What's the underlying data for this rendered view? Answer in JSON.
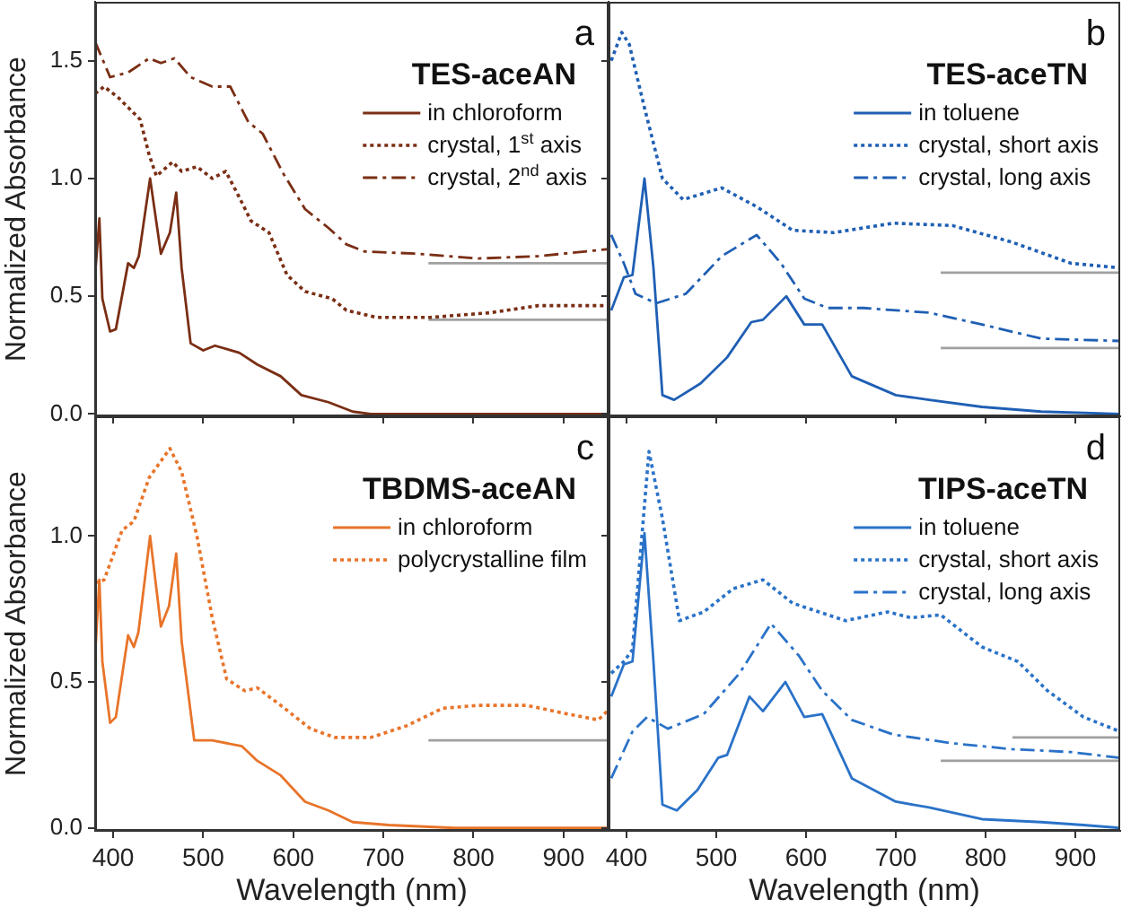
{
  "chart_data": [
    {
      "type": "line",
      "title": "TES-aceAN",
      "annotations": [
        "a"
      ],
      "ylabel": "Normalized Absorbance",
      "xlim": [
        380,
        950
      ],
      "xticks": [
        400,
        500,
        600,
        700,
        800,
        900
      ],
      "ylim": [
        -0.01,
        1.75
      ],
      "yticks": [
        {
          "value": 0,
          "label": "0.0"
        },
        {
          "value": 0.5,
          "label": "0.5"
        },
        {
          "value": 1,
          "label": "1.0"
        },
        {
          "value": 1.5,
          "label": "1.5"
        }
      ],
      "tick_labels": "y",
      "grid": false,
      "legend": "top right",
      "series": [
        {
          "name": "in chloroform",
          "color": "#7a2e14",
          "line_style": "solid",
          "x": [
            380,
            384.7,
            388,
            396.6,
            403,
            416.6,
            423,
            428.5,
            441,
            453,
            463,
            470,
            476,
            486,
            500,
            513,
            540,
            560,
            586,
            609,
            639,
            666,
            686,
            950
          ],
          "values": [
            0.59,
            0.83,
            0.49,
            0.35,
            0.36,
            0.64,
            0.62,
            0.67,
            1.0,
            0.68,
            0.77,
            0.94,
            0.62,
            0.3,
            0.27,
            0.29,
            0.26,
            0.21,
            0.16,
            0.08,
            0.05,
            0.01,
            0,
            0
          ]
        },
        {
          "name": "crystal, 1$^{st}$ axis",
          "color": "#7a2e14",
          "line_style": "dotted",
          "x": [
            380,
            390,
            406.6,
            430,
            440,
            448,
            466,
            476,
            493,
            510,
            525,
            540,
            553,
            573,
            593,
            613,
            643,
            659,
            692.5,
            752,
            819,
            872,
            950
          ],
          "values": [
            1.36,
            1.39,
            1.34,
            1.25,
            1.1,
            1.01,
            1.07,
            1.03,
            1.05,
            1.0,
            1.03,
            0.92,
            0.82,
            0.77,
            0.59,
            0.52,
            0.49,
            0.44,
            0.41,
            0.41,
            0.43,
            0.46,
            0.46
          ]
        },
        {
          "name": "crystal, 2$^{nd}$ axis",
          "color": "#7a2e14",
          "line_style": "dashdot",
          "x": [
            380,
            396.6,
            416.6,
            440,
            453,
            468,
            486,
            510,
            530,
            550,
            566,
            589,
            613,
            639,
            659,
            679,
            739,
            805,
            872,
            950
          ],
          "values": [
            1.58,
            1.43,
            1.45,
            1.51,
            1.49,
            1.51,
            1.43,
            1.39,
            1.39,
            1.24,
            1.19,
            1.02,
            0.87,
            0.79,
            0.72,
            0.69,
            0.68,
            0.66,
            0.67,
            0.7
          ]
        },
        {
          "type": "line",
          "color": "#a0a0a0",
          "line_style": "solid",
          "x": [
            750,
            950
          ],
          "values": [
            0.64,
            0.64
          ]
        },
        {
          "type": "line",
          "color": "#a0a0a0",
          "line_style": "solid",
          "x": [
            750,
            950
          ],
          "values": [
            0.4,
            0.4
          ]
        }
      ]
    },
    {
      "type": "line",
      "title": "TES-aceTN",
      "annotations": [
        "b"
      ],
      "xlim": [
        380,
        950
      ],
      "xticks": [
        400,
        500,
        600,
        700,
        800,
        900
      ],
      "ylim": [
        -0.01,
        1.75
      ],
      "yticks": [
        0,
        0.5,
        1,
        1.5
      ],
      "tick_labels": false,
      "grid": false,
      "legend": "top right",
      "series": [
        {
          "name": "in toluene",
          "color": "#1f5fb4",
          "line_style": "solid",
          "x": [
            383,
            397,
            406.6,
            420,
            430,
            440,
            453,
            482.6,
            512,
            539,
            552,
            578,
            598,
            618,
            651,
            700,
            737,
            796,
            862,
            950
          ],
          "values": [
            0.44,
            0.58,
            0.59,
            1.0,
            0.62,
            0.08,
            0.06,
            0.13,
            0.24,
            0.39,
            0.4,
            0.5,
            0.38,
            0.38,
            0.16,
            0.08,
            0.06,
            0.03,
            0.01,
            0
          ]
        },
        {
          "name": "crystal, short axis",
          "color": "#1f5fb4",
          "line_style": "dotted",
          "x": [
            383,
            394.7,
            403,
            420,
            440,
            463,
            506,
            545,
            585,
            631,
            697,
            763,
            829,
            895,
            950
          ],
          "values": [
            1.5,
            1.62,
            1.57,
            1.3,
            1.0,
            0.91,
            0.96,
            0.88,
            0.78,
            0.77,
            0.81,
            0.8,
            0.73,
            0.64,
            0.62
          ]
        },
        {
          "name": "crystal, long axis",
          "color": "#1f5fb4",
          "line_style": "dashdot",
          "x": [
            383,
            397,
            410,
            433,
            466,
            506,
            545,
            572,
            598,
            624,
            664,
            737,
            796,
            862,
            950
          ],
          "values": [
            0.76,
            0.64,
            0.51,
            0.47,
            0.51,
            0.67,
            0.76,
            0.64,
            0.49,
            0.45,
            0.45,
            0.43,
            0.38,
            0.32,
            0.31
          ]
        },
        {
          "type": "line",
          "color": "#a0a0a0",
          "line_style": "solid",
          "x": [
            750,
            950
          ],
          "values": [
            0.6,
            0.6
          ]
        },
        {
          "type": "line",
          "color": "#a0a0a0",
          "line_style": "solid",
          "x": [
            750,
            950
          ],
          "values": [
            0.28,
            0.28
          ]
        }
      ]
    },
    {
      "type": "line",
      "title": "TBDMS-aceAN",
      "annotations": [
        "c"
      ],
      "xlabel": "Wavelength (nm)",
      "ylabel": "Normalized Absorbance",
      "xlim": [
        380,
        950
      ],
      "xticks": [
        400,
        500,
        600,
        700,
        800,
        900
      ],
      "ylim": [
        -0.01,
        1.41
      ],
      "yticks": [
        {
          "value": 0,
          "label": "0.0"
        },
        {
          "value": 0.5,
          "label": "0.5"
        },
        {
          "value": 1,
          "label": "1.0"
        }
      ],
      "grid": false,
      "legend": "top right",
      "series": [
        {
          "name": "in chloroform",
          "color": "#e8742a",
          "line_style": "solid",
          "x": [
            380,
            384.7,
            388,
            396.6,
            403,
            416.6,
            423,
            428,
            441,
            453,
            462,
            470,
            476,
            490,
            510,
            543,
            560,
            586,
            613,
            639,
            666,
            706,
            779,
            950
          ],
          "values": [
            0.59,
            0.85,
            0.57,
            0.36,
            0.38,
            0.66,
            0.62,
            0.67,
            1.0,
            0.69,
            0.76,
            0.94,
            0.64,
            0.3,
            0.3,
            0.28,
            0.23,
            0.18,
            0.09,
            0.06,
            0.02,
            0.01,
            0,
            0
          ]
        },
        {
          "name": "polycrystalline film",
          "color": "#e8742a",
          "line_style": "dotted",
          "x": [
            380,
            390,
            410,
            423,
            440,
            463,
            476,
            493,
            510,
            526,
            546,
            560,
            586,
            619,
            646,
            686,
            726,
            766,
            805.5,
            859,
            905,
            938.5,
            948.5
          ],
          "values": [
            0.84,
            0.85,
            1.02,
            1.05,
            1.2,
            1.3,
            1.22,
            1.0,
            0.72,
            0.51,
            0.47,
            0.48,
            0.42,
            0.34,
            0.31,
            0.31,
            0.35,
            0.41,
            0.42,
            0.42,
            0.39,
            0.37,
            0.4
          ]
        },
        {
          "type": "line",
          "color": "#a0a0a0",
          "line_style": "solid",
          "x": [
            750,
            950
          ],
          "values": [
            0.3,
            0.3
          ]
        }
      ]
    },
    {
      "type": "line",
      "title": "TIPS-aceTN",
      "annotations": [
        "d"
      ],
      "xlabel": "Wavelength (nm)",
      "xlim": [
        380,
        950
      ],
      "xticks": [
        400,
        500,
        600,
        700,
        800,
        900
      ],
      "ylim": [
        -0.01,
        1.41
      ],
      "yticks": [
        0,
        0.5,
        1
      ],
      "tick_labels": "x",
      "grid": false,
      "legend": "top right",
      "series": [
        {
          "name": "in toluene",
          "color": "#2a72c8",
          "line_style": "solid",
          "x": [
            383,
            397,
            406.6,
            420,
            430,
            440,
            456,
            479,
            502,
            512,
            537,
            552,
            577,
            598,
            618,
            651,
            700,
            737,
            796,
            862,
            909,
            950
          ],
          "values": [
            0.45,
            0.56,
            0.57,
            1.01,
            0.57,
            0.08,
            0.06,
            0.13,
            0.24,
            0.25,
            0.45,
            0.4,
            0.5,
            0.38,
            0.39,
            0.17,
            0.09,
            0.07,
            0.03,
            0.02,
            0.01,
            0
          ]
        },
        {
          "name": "crystal, short axis",
          "color": "#2a72c8",
          "line_style": "dotted",
          "x": [
            383,
            397,
            406.6,
            425,
            440,
            459,
            486,
            519,
            552,
            585,
            644,
            691,
            717,
            750,
            796,
            836,
            869,
            909,
            950
          ],
          "values": [
            0.53,
            0.57,
            0.61,
            1.29,
            1.06,
            0.71,
            0.74,
            0.82,
            0.85,
            0.77,
            0.71,
            0.74,
            0.72,
            0.73,
            0.62,
            0.57,
            0.47,
            0.38,
            0.33
          ]
        },
        {
          "name": "crystal, long axis",
          "color": "#2a72c8",
          "line_style": "dashdot",
          "x": [
            383,
            406.6,
            423,
            446,
            486,
            526,
            561,
            592,
            618,
            651,
            697,
            763,
            829,
            895,
            950
          ],
          "values": [
            0.17,
            0.33,
            0.38,
            0.34,
            0.39,
            0.53,
            0.7,
            0.59,
            0.47,
            0.37,
            0.32,
            0.29,
            0.27,
            0.26,
            0.24
          ]
        },
        {
          "type": "line",
          "color": "#a0a0a0",
          "line_style": "solid",
          "x": [
            830,
            950
          ],
          "values": [
            0.31,
            0.31
          ]
        },
        {
          "type": "line",
          "color": "#a0a0a0",
          "line_style": "solid",
          "x": [
            750,
            950
          ],
          "values": [
            0.23,
            0.23
          ]
        }
      ]
    }
  ]
}
